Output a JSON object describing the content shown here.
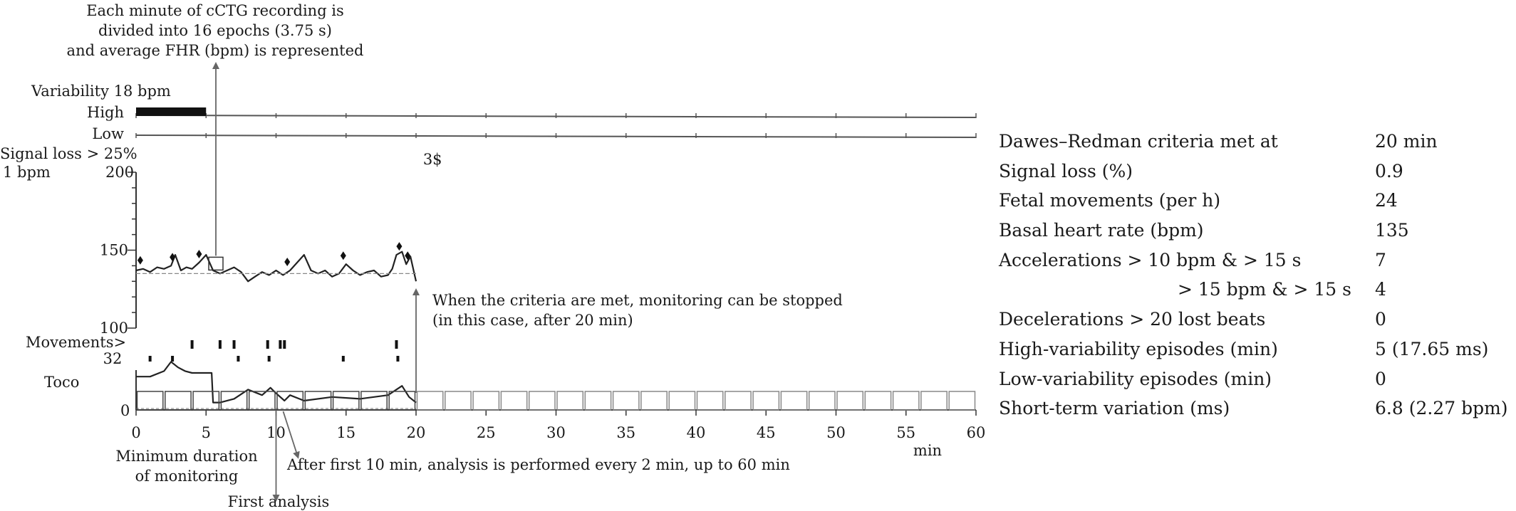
{
  "chart_data": {
    "type": "line",
    "x_axis": {
      "label": "min",
      "range": [
        0,
        60
      ],
      "ticks": [
        0,
        5,
        10,
        15,
        20,
        25,
        30,
        35,
        40,
        45,
        50,
        55,
        60
      ]
    },
    "fhr_axis": {
      "label": "1 bpm",
      "range": [
        100,
        200
      ],
      "ticks": [
        100,
        150,
        200
      ]
    },
    "variability": {
      "label": "Variability 18 bpm",
      "high_label": "High",
      "low_label": "Low",
      "high_episodes": [
        [
          0,
          5
        ]
      ]
    },
    "signal_loss": {
      "label": "Signal loss > 25%",
      "marker": "3$",
      "marker_at": 20.5
    },
    "fhr_series": {
      "x": [
        0,
        0.5,
        1,
        1.5,
        2,
        2.5,
        2.8,
        3.2,
        3.6,
        4,
        4.5,
        5,
        5.5,
        6,
        6.5,
        7,
        7.5,
        8,
        8.5,
        9,
        9.5,
        10,
        10.5,
        11,
        11.5,
        12,
        12.5,
        13,
        13.5,
        14,
        14.5,
        15,
        15.5,
        16,
        16.5,
        17,
        17.5,
        18,
        18.3,
        18.6,
        19,
        19.3,
        19.6,
        20
      ],
      "y": [
        137,
        138,
        136,
        139,
        138,
        140,
        147,
        137,
        139,
        138,
        142,
        147,
        137,
        135,
        137,
        139,
        136,
        130,
        133,
        136,
        134,
        137,
        134,
        137,
        142,
        147,
        137,
        135,
        137,
        133,
        135,
        141,
        137,
        134,
        136,
        137,
        133,
        134,
        138,
        147,
        149,
        141,
        146,
        130
      ]
    },
    "baseline_bpm": 135,
    "acceleration_markers_min": [
      0.3,
      2.6,
      4.5,
      10.8,
      14.8,
      18.8,
      19.4
    ],
    "highlight_epoch_min": 5.7,
    "movements": {
      "label": "Movements>",
      "scale_label": "32",
      "row1_min": [
        4,
        6,
        7,
        9.4,
        10.3,
        10.6,
        18.6
      ],
      "row2_min": [
        1,
        2.6,
        7.3,
        9.5,
        14.8,
        18.7
      ]
    },
    "toco": {
      "label": "Toco",
      "zero_label": "0",
      "x": [
        0,
        1,
        2,
        2.5,
        3,
        3.5,
        4,
        5,
        5.4,
        5.5,
        6,
        7,
        8,
        9,
        9.6,
        10,
        10.6,
        11,
        12,
        14,
        16,
        18,
        19,
        19.5,
        20
      ],
      "y": [
        18,
        18,
        21,
        26,
        23,
        21,
        20,
        20,
        20,
        4,
        4,
        6,
        11,
        8,
        12,
        9,
        5,
        8,
        5,
        7,
        6,
        8,
        13,
        7,
        4
      ]
    },
    "analysis_boxes": {
      "start_min": 0,
      "end_min": 60,
      "step_min": 2,
      "filled_until_min": 20
    },
    "annotations": {
      "epochs_note": [
        "Each minute of cCTG recording is",
        "divided into 16 epochs (3.75 s)",
        "and average FHR (bpm) is represented"
      ],
      "criteria_note": [
        "When the criteria are met, monitoring can be stopped",
        "(in this case, after 20 min)"
      ],
      "minimum_duration": [
        "Minimum duration",
        "of monitoring"
      ],
      "analysis_every": "After first 10 min, analysis is performed every 2 min,  up to 60 min",
      "first_analysis": "First analysis"
    }
  },
  "summary": {
    "rows": [
      {
        "label": "Dawes–Redman criteria met at",
        "value": "20 min"
      },
      {
        "label": "Signal loss (%)",
        "value": "0.9"
      },
      {
        "label": "Fetal movements (per h)",
        "value": "24"
      },
      {
        "label": "Basal heart rate (bpm)",
        "value": "135"
      },
      {
        "label": "Accelerations > 10 bpm & > 15 s",
        "value": "7"
      },
      {
        "label": "> 15 bpm & > 15 s",
        "value": "4",
        "indent": true
      },
      {
        "label": "Decelerations > 20 lost beats",
        "value": "0"
      },
      {
        "label": "High-variability episodes (min)",
        "value": "5 (17.65 ms)"
      },
      {
        "label": "Low-variability episodes (min)",
        "value": "0"
      },
      {
        "label": "Short-term variation (ms)",
        "value": "6.8 (2.27 bpm)"
      }
    ]
  }
}
